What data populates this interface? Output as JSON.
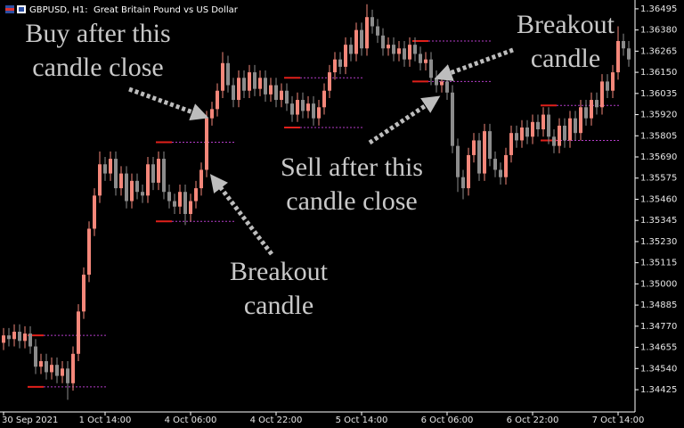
{
  "chart_data": {
    "type": "candlestick",
    "title": "GBPUSD, H1:  Great Britain Pound vs US Dollar",
    "up_color": "#f4877a",
    "down_color": "#8c8c8c",
    "ylim": [
      1.34304,
      1.36543
    ],
    "yticks": [
      1.36495,
      {
        "value": 1.3638,
        "label": "1.36380"
      },
      1.36265,
      {
        "value": 1.3615,
        "label": "1.36150"
      },
      1.36035,
      {
        "value": 1.3592,
        "label": "1.35920"
      },
      1.35805,
      {
        "value": 1.3569,
        "label": "1.35690"
      },
      1.35575,
      {
        "value": 1.3546,
        "label": "1.35460"
      },
      1.35345,
      {
        "value": 1.3523,
        "label": "1.35230"
      },
      1.35115,
      {
        "value": 1.35,
        "label": "1.35000"
      },
      1.34885,
      {
        "value": 1.3477,
        "label": "1.34770"
      },
      1.34655,
      {
        "value": 1.3454,
        "label": "1.34540"
      },
      1.34425
    ],
    "categories": [
      "30 Sep 2021",
      null,
      null,
      null,
      null,
      null,
      null,
      null,
      null,
      null,
      null,
      null,
      null,
      null,
      null,
      null,
      null,
      null,
      null,
      "1 Oct 14:00",
      null,
      null,
      null,
      null,
      null,
      null,
      null,
      null,
      null,
      null,
      null,
      null,
      null,
      null,
      null,
      "4 Oct 06:00",
      null,
      null,
      null,
      null,
      null,
      null,
      null,
      null,
      null,
      null,
      null,
      null,
      null,
      null,
      null,
      "4 Oct 22:00",
      null,
      null,
      null,
      null,
      null,
      null,
      null,
      null,
      null,
      null,
      null,
      null,
      null,
      null,
      null,
      "5 Oct 14:00",
      null,
      null,
      null,
      null,
      null,
      null,
      null,
      null,
      null,
      null,
      null,
      null,
      null,
      null,
      null,
      "6 Oct 06:00",
      null,
      null,
      null,
      null,
      null,
      null,
      null,
      null,
      null,
      null,
      null,
      null,
      null,
      null,
      null,
      "6 Oct 22:00",
      null,
      null,
      null,
      null,
      null,
      null,
      null,
      null,
      null,
      null,
      null,
      null,
      null,
      null,
      null,
      "7 Oct 14:00",
      null,
      null
    ],
    "open": [
      1.3468,
      1.3472,
      1.347,
      1.3474,
      1.3469,
      1.3473,
      1.3466,
      1.3455,
      1.3458,
      1.3452,
      1.3456,
      1.345,
      1.3454,
      1.3446,
      1.3462,
      1.3485,
      1.3505,
      1.353,
      1.3548,
      1.3565,
      1.356,
      1.3568,
      1.3552,
      1.356,
      1.3545,
      1.3556,
      1.355,
      1.3548,
      1.3565,
      1.3555,
      1.3568,
      1.355,
      1.3545,
      1.3542,
      1.355,
      1.3538,
      1.3545,
      1.3552,
      1.3562,
      1.359,
      1.3595,
      1.3605,
      1.362,
      1.3608,
      1.36,
      1.3612,
      1.3605,
      1.3615,
      1.3606,
      1.3612,
      1.3603,
      1.3608,
      1.36,
      1.3605,
      1.3598,
      1.3592,
      1.36,
      1.3594,
      1.3598,
      1.359,
      1.3596,
      1.3605,
      1.3615,
      1.3622,
      1.3618,
      1.363,
      1.3625,
      1.3638,
      1.3628,
      1.3645,
      1.364,
      1.3635,
      1.3628,
      1.363,
      1.3625,
      1.3628,
      1.3622,
      1.363,
      1.3625,
      1.362,
      1.3622,
      1.3612,
      1.3608,
      1.361,
      1.3604,
      1.3575,
      1.3558,
      1.3552,
      1.357,
      1.3578,
      1.356,
      1.3583,
      1.3568,
      1.3562,
      1.3558,
      1.357,
      1.3582,
      1.3578,
      1.3585,
      1.358,
      1.3588,
      1.3584,
      1.3592,
      1.358,
      1.3575,
      1.3586,
      1.3578,
      1.359,
      1.3582,
      1.3596,
      1.359,
      1.36,
      1.3596,
      1.361,
      1.3605,
      1.3615,
      1.3632,
      1.3628
    ],
    "high": [
      1.3476,
      1.3476,
      1.3478,
      1.3478,
      1.3477,
      1.3477,
      1.347,
      1.3462,
      1.3462,
      1.346,
      1.346,
      1.3458,
      1.3458,
      1.3466,
      1.3489,
      1.3509,
      1.3534,
      1.3552,
      1.3572,
      1.3569,
      1.3572,
      1.3572,
      1.3564,
      1.3564,
      1.356,
      1.356,
      1.3554,
      1.3569,
      1.3569,
      1.3572,
      1.3572,
      1.3554,
      1.3549,
      1.3554,
      1.3554,
      1.3549,
      1.3556,
      1.3566,
      1.3594,
      1.3599,
      1.3609,
      1.3626,
      1.3624,
      1.3612,
      1.3616,
      1.3616,
      1.3619,
      1.3619,
      1.3616,
      1.3616,
      1.3612,
      1.3612,
      1.3609,
      1.3609,
      1.3602,
      1.3604,
      1.3604,
      1.3602,
      1.3602,
      1.36,
      1.3609,
      1.3619,
      1.3626,
      1.3626,
      1.3634,
      1.3634,
      1.3642,
      1.3642,
      1.3652,
      1.3649,
      1.3644,
      1.3639,
      1.3634,
      1.3634,
      1.3632,
      1.3632,
      1.3634,
      1.3634,
      1.3629,
      1.3626,
      1.3626,
      1.3616,
      1.3614,
      1.3614,
      1.3608,
      1.3579,
      1.3562,
      1.3574,
      1.3582,
      1.3582,
      1.3587,
      1.3587,
      1.3572,
      1.3566,
      1.3574,
      1.3586,
      1.3586,
      1.3589,
      1.3589,
      1.3592,
      1.3592,
      1.3596,
      1.3596,
      1.3584,
      1.359,
      1.359,
      1.3594,
      1.3594,
      1.36,
      1.36,
      1.3604,
      1.3604,
      1.3614,
      1.3614,
      1.3619,
      1.364,
      1.3636,
      1.3632
    ],
    "low": [
      1.3464,
      1.3466,
      1.3466,
      1.3465,
      1.3465,
      1.3462,
      1.3451,
      1.3451,
      1.3448,
      1.3448,
      1.3446,
      1.3446,
      1.3437,
      1.3442,
      1.3458,
      1.3481,
      1.3501,
      1.3526,
      1.3544,
      1.3556,
      1.3556,
      1.3548,
      1.3548,
      1.3541,
      1.3541,
      1.3546,
      1.3544,
      1.3544,
      1.3551,
      1.3551,
      1.3546,
      1.3541,
      1.3538,
      1.3538,
      1.3532,
      1.3534,
      1.3541,
      1.3548,
      1.3558,
      1.3586,
      1.3591,
      1.3601,
      1.3604,
      1.3596,
      1.3596,
      1.3601,
      1.3601,
      1.3602,
      1.3602,
      1.3599,
      1.3599,
      1.3596,
      1.3596,
      1.3594,
      1.3588,
      1.3588,
      1.359,
      1.359,
      1.3586,
      1.3586,
      1.3592,
      1.3601,
      1.3611,
      1.3614,
      1.3614,
      1.3621,
      1.3621,
      1.3624,
      1.3624,
      1.3636,
      1.3631,
      1.3624,
      1.3624,
      1.3621,
      1.3621,
      1.3618,
      1.3618,
      1.3621,
      1.3616,
      1.3616,
      1.3608,
      1.3604,
      1.3604,
      1.36,
      1.3571,
      1.355,
      1.3546,
      1.3548,
      1.3566,
      1.3556,
      1.3556,
      1.3564,
      1.3558,
      1.3554,
      1.3554,
      1.3566,
      1.3574,
      1.3574,
      1.3576,
      1.3576,
      1.358,
      1.358,
      1.3576,
      1.3571,
      1.3571,
      1.3574,
      1.3574,
      1.3578,
      1.3578,
      1.3586,
      1.3586,
      1.3592,
      1.3592,
      1.3601,
      1.3601,
      1.3611,
      1.3624,
      1.3618
    ],
    "close": [
      1.3472,
      1.347,
      1.3474,
      1.3469,
      1.3473,
      1.3466,
      1.3455,
      1.3458,
      1.3452,
      1.3456,
      1.345,
      1.3454,
      1.3446,
      1.3462,
      1.3485,
      1.3505,
      1.353,
      1.3548,
      1.3565,
      1.356,
      1.3568,
      1.3552,
      1.356,
      1.3545,
      1.3556,
      1.355,
      1.3548,
      1.3565,
      1.3555,
      1.3568,
      1.355,
      1.3545,
      1.3542,
      1.355,
      1.3538,
      1.3545,
      1.3552,
      1.3562,
      1.359,
      1.3595,
      1.3605,
      1.362,
      1.3608,
      1.36,
      1.3612,
      1.3605,
      1.3615,
      1.3606,
      1.3612,
      1.3603,
      1.3608,
      1.36,
      1.3605,
      1.3598,
      1.3592,
      1.36,
      1.3594,
      1.3598,
      1.359,
      1.3596,
      1.3605,
      1.3615,
      1.3622,
      1.3618,
      1.363,
      1.3625,
      1.3638,
      1.3628,
      1.3645,
      1.364,
      1.3635,
      1.3628,
      1.363,
      1.3625,
      1.3628,
      1.3622,
      1.363,
      1.3625,
      1.362,
      1.3622,
      1.3612,
      1.3608,
      1.361,
      1.3604,
      1.3575,
      1.3558,
      1.3552,
      1.357,
      1.3578,
      1.356,
      1.3583,
      1.3568,
      1.3562,
      1.3558,
      1.357,
      1.3582,
      1.3578,
      1.3585,
      1.358,
      1.3588,
      1.3584,
      1.3592,
      1.358,
      1.3575,
      1.3586,
      1.3578,
      1.359,
      1.3582,
      1.3596,
      1.359,
      1.36,
      1.3596,
      1.361,
      1.3605,
      1.3615,
      1.3632,
      1.3628,
      1.3622
    ],
    "levels": [
      {
        "high": 1.3472,
        "low": 1.3444,
        "from": 5,
        "to": 19
      },
      {
        "high": 1.3577,
        "low": 1.3534,
        "from": 29,
        "to": 43
      },
      {
        "high": 1.3612,
        "low": 1.3585,
        "from": 53,
        "to": 67
      },
      {
        "high": 1.3632,
        "low": 1.361,
        "from": 77,
        "to": 91
      },
      {
        "high": 1.3597,
        "low": 1.3578,
        "from": 101,
        "to": 115
      }
    ],
    "annotations": [
      {
        "lines": [
          "Buy after this",
          "candle close"
        ]
      },
      {
        "lines": [
          "Breakout",
          "candle"
        ]
      },
      {
        "lines": [
          "Sell after this",
          "candle close"
        ]
      },
      {
        "lines": [
          "Breakout",
          "candle"
        ]
      }
    ]
  }
}
